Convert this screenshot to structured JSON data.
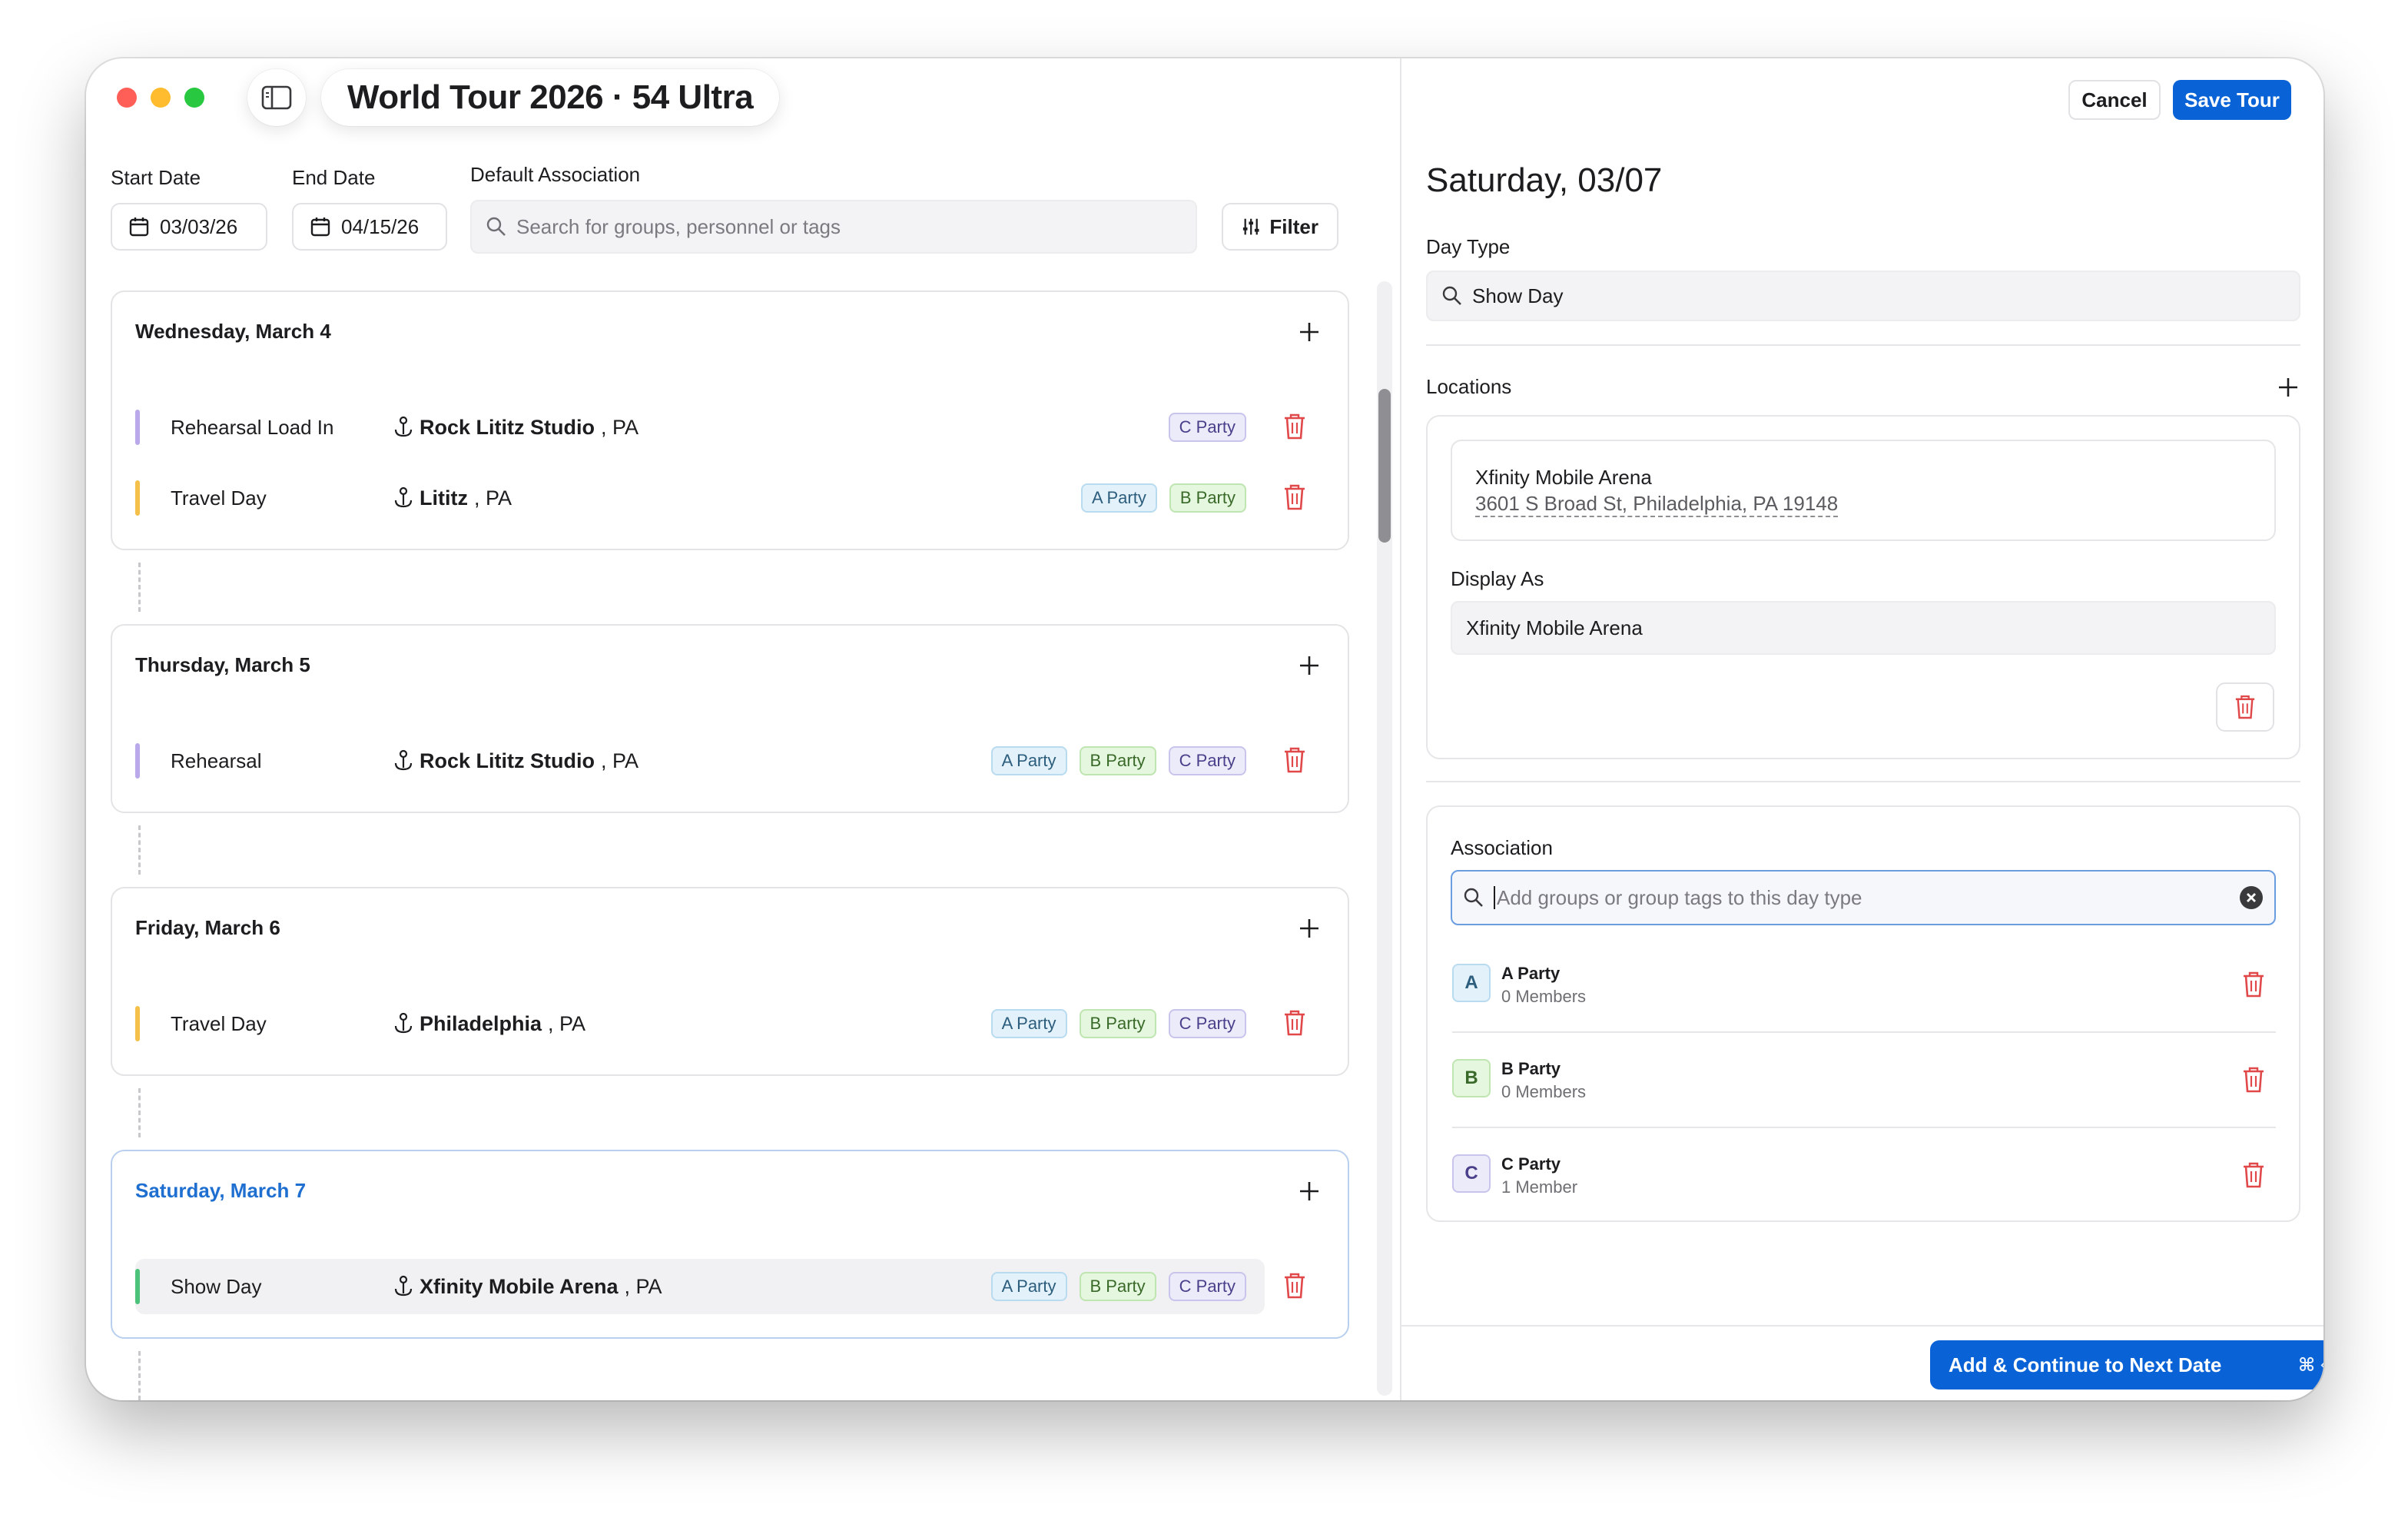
{
  "window": {
    "title": "World Tour 2026 · 54 Ultra",
    "traffic_light_colors": [
      "#ff5f57",
      "#febc2e",
      "#28c840"
    ]
  },
  "filters": {
    "start_date_label": "Start Date",
    "start_date_value": "03/03/26",
    "end_date_label": "End Date",
    "end_date_value": "04/15/26",
    "association_label": "Default Association",
    "association_placeholder": "Search for groups, personnel or tags",
    "filter_label": "Filter"
  },
  "days": [
    {
      "heading": "Wednesday, March 4",
      "rows": [
        {
          "name": "Rehearsal Load In",
          "place": "Rock Lititz Studio",
          "region": ", PA",
          "bar_color": "#b9a9ea",
          "tags": [
            "C Party"
          ]
        },
        {
          "name": "Travel Day",
          "place": "Lititz",
          "region": ", PA",
          "bar_color": "#f4c04a",
          "tags": [
            "A Party",
            "B Party"
          ]
        }
      ]
    },
    {
      "heading": "Thursday, March 5",
      "rows": [
        {
          "name": "Rehearsal",
          "place": "Rock Lititz Studio",
          "region": ", PA",
          "bar_color": "#b9a9ea",
          "tags": [
            "A Party",
            "B Party",
            "C Party"
          ]
        }
      ]
    },
    {
      "heading": "Friday, March 6",
      "rows": [
        {
          "name": "Travel Day",
          "place": "Philadelphia",
          "region": ", PA",
          "bar_color": "#f4c04a",
          "tags": [
            "A Party",
            "B Party",
            "C Party"
          ]
        }
      ]
    },
    {
      "heading": "Saturday, March 7",
      "rows": [
        {
          "name": "Show Day",
          "place": "Xfinity Mobile Arena",
          "region": ", PA",
          "bar_color": "#4cc27a",
          "tags": [
            "A Party",
            "B Party",
            "C Party"
          ]
        }
      ]
    }
  ],
  "actions": {
    "cancel_label": "Cancel",
    "save_label": "Save Tour",
    "cta_label": "Add & Continue to Next Date",
    "cta_shortcut": "⌘ ⏎"
  },
  "detail": {
    "heading": "Saturday, 03/07",
    "day_type_label": "Day Type",
    "day_type_value": "Show Day",
    "locations_label": "Locations",
    "location_name": "Xfinity Mobile Arena",
    "location_address": "3601 S Broad St, Philadelphia, PA 19148",
    "display_as_label": "Display As",
    "display_as_value": "Xfinity Mobile Arena",
    "association_label": "Association",
    "association_placeholder": "Add groups or group tags to this day type",
    "associations": [
      {
        "letter": "A",
        "name": "A Party",
        "members": "0 Members",
        "kind": "a"
      },
      {
        "letter": "B",
        "name": "B Party",
        "members": "0 Members",
        "kind": "b"
      },
      {
        "letter": "C",
        "name": "C Party",
        "members": "1 Member",
        "kind": "c"
      }
    ]
  },
  "colors": {
    "accent": "#0a63d6",
    "active_heading": "#1f6fd1",
    "danger": "#e0484a"
  }
}
